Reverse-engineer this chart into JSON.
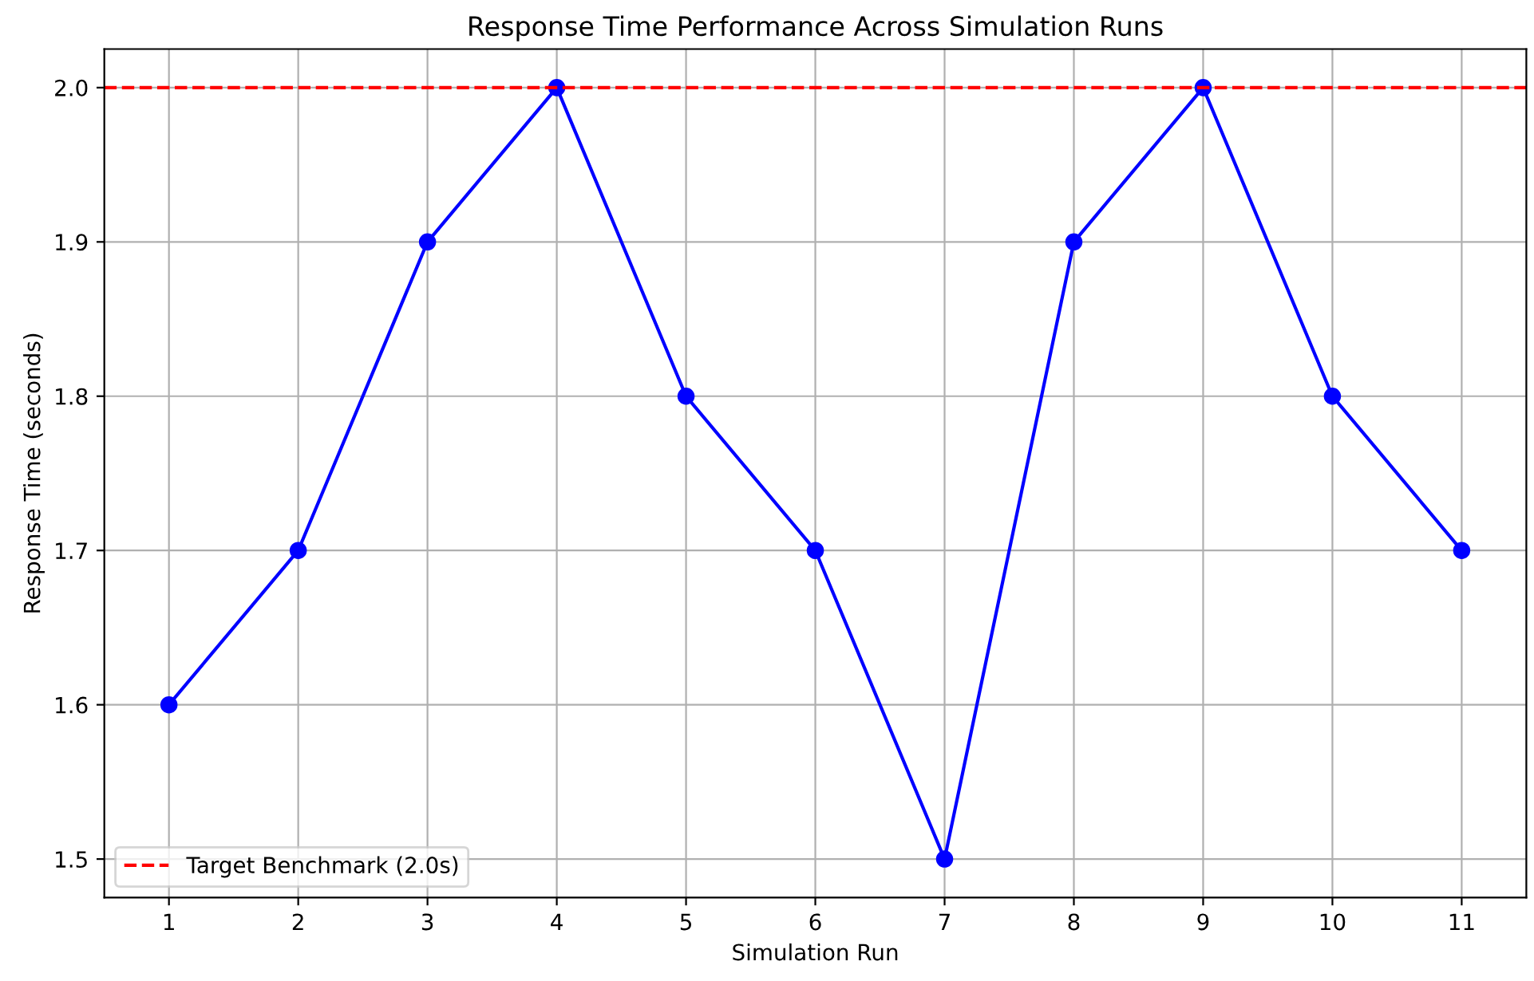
{
  "chart_data": {
    "type": "line",
    "title": "Response Time Performance Across Simulation Runs",
    "xlabel": "Simulation Run",
    "ylabel": "Response Time (seconds)",
    "x": [
      1,
      2,
      3,
      4,
      5,
      6,
      7,
      8,
      9,
      10,
      11
    ],
    "series": [
      {
        "color": "#0000ff",
        "values": [
          1.6,
          1.7,
          1.9,
          2.0,
          1.8,
          1.7,
          1.5,
          1.9,
          2.0,
          1.8,
          1.7
        ]
      }
    ],
    "xlim": [
      0.5,
      11.5
    ],
    "xticks": [
      1,
      2,
      3,
      4,
      5,
      6,
      7,
      8,
      9,
      10,
      11
    ],
    "ylim": [
      1.475,
      2.025
    ],
    "yticks": [
      {
        "value": 1.5,
        "label": "1.5"
      },
      {
        "value": 1.6,
        "label": "1.6"
      },
      {
        "value": 1.7,
        "label": "1.7"
      },
      {
        "value": 1.8,
        "label": "1.8"
      },
      {
        "value": 1.9,
        "label": "1.9"
      },
      {
        "value": 2.0,
        "label": "2.0"
      }
    ],
    "ref_lines": [
      {
        "axis": "y",
        "value": 2.0,
        "label": "Target Benchmark (2.0s)",
        "color": "#ff0000",
        "line_style": "dashed"
      }
    ],
    "grid": true,
    "legend": "lower left",
    "marker": "circle",
    "line_style": "solid"
  }
}
